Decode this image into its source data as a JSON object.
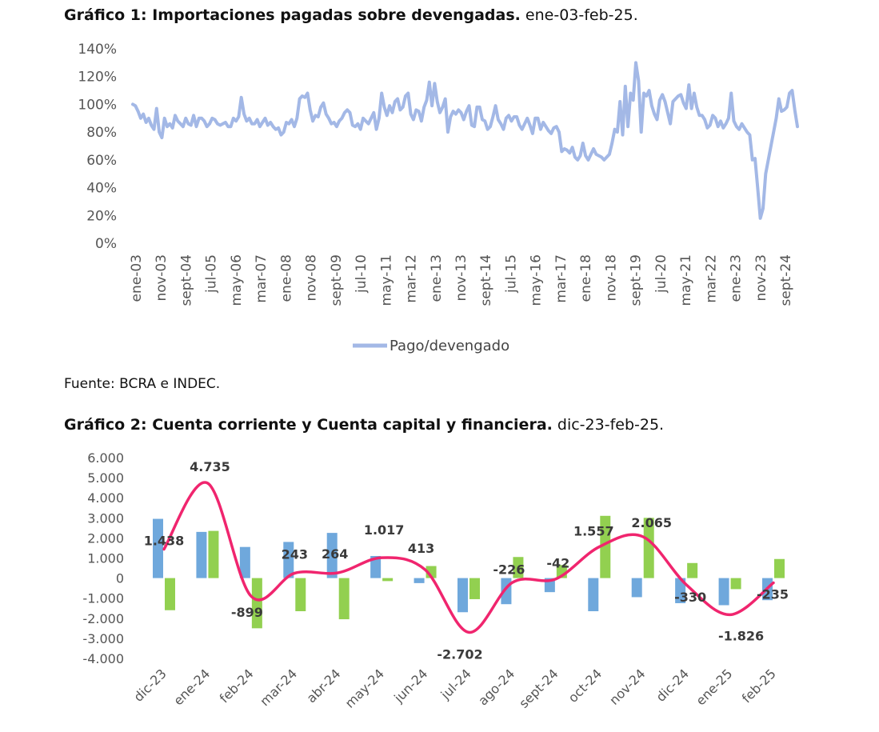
{
  "chart1": {
    "title_bold": "Gráfico 1: Importaciones pagadas sobre devengadas.",
    "title_rest": " ene-03-feb-25.",
    "source": "Fuente: BCRA e INDEC.",
    "chart_data": {
      "type": "line",
      "y_tick_labels": [
        "140%",
        "120%",
        "100%",
        "80%",
        "60%",
        "40%",
        "20%",
        "0%"
      ],
      "ylim": [
        0,
        140
      ],
      "x_tick_labels": [
        "ene-03",
        "nov-03",
        "sept-04",
        "jul-05",
        "may-06",
        "mar-07",
        "ene-08",
        "nov-08",
        "sept-09",
        "jul-10",
        "may-11",
        "mar-12",
        "ene-13",
        "nov-13",
        "sept-14",
        "jul-15",
        "may-16",
        "mar-17",
        "ene-18",
        "nov-18",
        "sept-19",
        "jul-20",
        "may-21",
        "mar-22",
        "ene-23",
        "nov-23",
        "sept-24"
      ],
      "legend": "Pago/devengado",
      "color": "#a3b8e6",
      "series": [
        {
          "name": "Pago/devengado",
          "values": [
            100,
            99,
            95,
            90,
            93,
            87,
            90,
            85,
            82,
            97,
            80,
            76,
            90,
            84,
            86,
            83,
            92,
            88,
            86,
            84,
            90,
            86,
            85,
            92,
            84,
            90,
            90,
            88,
            84,
            86,
            90,
            89,
            86,
            85,
            86,
            87,
            84,
            84,
            90,
            88,
            91,
            105,
            93,
            88,
            90,
            86,
            86,
            89,
            84,
            87,
            90,
            85,
            87,
            84,
            82,
            83,
            78,
            80,
            87,
            86,
            89,
            84,
            90,
            104,
            106,
            105,
            108,
            96,
            88,
            92,
            91,
            98,
            101,
            93,
            90,
            86,
            87,
            84,
            88,
            90,
            94,
            96,
            94,
            85,
            84,
            86,
            82,
            90,
            88,
            86,
            90,
            94,
            82,
            90,
            108,
            98,
            92,
            99,
            94,
            102,
            104,
            96,
            98,
            106,
            108,
            93,
            89,
            96,
            95,
            88,
            98,
            103,
            116,
            99,
            115,
            102,
            94,
            98,
            104,
            80,
            91,
            95,
            93,
            96,
            94,
            89,
            95,
            99,
            85,
            84,
            98,
            98,
            89,
            88,
            82,
            84,
            91,
            99,
            89,
            86,
            82,
            90,
            92,
            88,
            91,
            91,
            85,
            82,
            86,
            90,
            85,
            79,
            90,
            90,
            82,
            87,
            84,
            81,
            79,
            83,
            84,
            80,
            66,
            68,
            67,
            65,
            69,
            62,
            60,
            63,
            72,
            63,
            60,
            64,
            68,
            64,
            63,
            62,
            60,
            62,
            64,
            72,
            82,
            80,
            102,
            78,
            113,
            84,
            108,
            103,
            130,
            117,
            80,
            108,
            106,
            110,
            99,
            93,
            89,
            103,
            107,
            102,
            94,
            86,
            102,
            104,
            106,
            107,
            101,
            97,
            114,
            97,
            108,
            98,
            92,
            92,
            89,
            83,
            85,
            92,
            90,
            84,
            88,
            83,
            86,
            90,
            108,
            88,
            84,
            82,
            86,
            83,
            80,
            78,
            60,
            61,
            40,
            18,
            25,
            50,
            60,
            70,
            80,
            90,
            104,
            95,
            96,
            98,
            108,
            110,
            96,
            84
          ]
        }
      ]
    }
  },
  "chart2": {
    "title_bold": "Gráfico 2: Cuenta corriente y Cuenta capital y financiera.",
    "title_rest": " dic-23-feb-25.",
    "chart_data": {
      "type": "bar",
      "categories": [
        "dic-23",
        "ene-24",
        "feb-24",
        "mar-24",
        "abr-24",
        "may-24",
        "jun-24",
        "jul-24",
        "ago-24",
        "sept-24",
        "oct-24",
        "nov-24",
        "dic-24",
        "ene-25",
        "feb-25"
      ],
      "y_tick_labels": [
        "6.000",
        "5.000",
        "4.000",
        "3.000",
        "2.000",
        "1.000",
        "0",
        "-1.000",
        "-2.000",
        "-3.000",
        "-4.000"
      ],
      "ylim": [
        -4000,
        6000
      ],
      "series": [
        {
          "color": "#6fa8dc",
          "values": [
            2950,
            2300,
            1550,
            1800,
            2250,
            1100,
            -250,
            -1700,
            -1300,
            -700,
            -1650,
            -950,
            -1250,
            -1350,
            -1100
          ]
        },
        {
          "color": "#92d050",
          "values": [
            -1600,
            2350,
            -2500,
            -1650,
            -2050,
            -150,
            600,
            -1050,
            1050,
            650,
            3100,
            3000,
            750,
            -550,
            950
          ]
        },
        {
          "color": "#f0256e",
          "values": [
            1438,
            4735,
            -899,
            243,
            264,
            1017,
            413,
            -2702,
            -226,
            -42,
            1557,
            2065,
            -330,
            -1826,
            -235
          ]
        }
      ],
      "data_labels": [
        "1.438",
        "4.735",
        "-899",
        "243",
        "264",
        "1.017",
        "413",
        "-2.702",
        "-226",
        "-42",
        "1.557",
        "2.065",
        "-330",
        "-1.826",
        "-235"
      ]
    }
  }
}
